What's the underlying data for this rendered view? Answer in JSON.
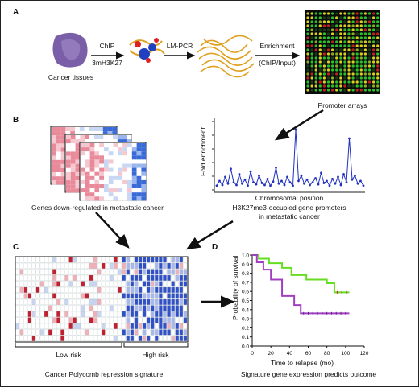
{
  "panels": {
    "a": "A",
    "b": "B",
    "c": "C",
    "d": "D"
  },
  "panel_a": {
    "chip_top": "ChIP",
    "chip_bottom": "3mH3K27",
    "lmpcr": "LM-PCR",
    "enrich_top": "Enrichment",
    "enrich_bottom": "(ChIP/Input)",
    "tissue_label": "Cancer tissues",
    "array_label": "Promoter arrays"
  },
  "panel_b": {
    "heatmap_label": "Genes down-regulated in metastatic cancer",
    "ylabel": "Fold enrichment",
    "xlabel": "Chromosomal position",
    "caption_line1": "H3K27me3-occupied gene promoters",
    "caption_line2": "in metastatic cancer"
  },
  "panel_c": {
    "low": "Low risk",
    "high": "High risk",
    "caption": "Cancer Polycomb repression signature"
  },
  "chart_data": {
    "type": "line",
    "title": "",
    "xlabel": "Time to relapse (mo)",
    "ylabel": "Probability of survival",
    "xlim": [
      0,
      120
    ],
    "ylim": [
      0,
      1.0
    ],
    "xticks": [
      0,
      20,
      40,
      60,
      80,
      100,
      120
    ],
    "yticks": [
      0.0,
      0.1,
      0.2,
      0.3,
      0.4,
      0.5,
      0.6,
      0.7,
      0.8,
      0.9,
      1.0
    ],
    "series": [
      {
        "color": "#66dd22",
        "x": [
          0,
          7,
          7,
          18,
          18,
          32,
          32,
          42,
          42,
          58,
          58,
          80,
          80,
          88,
          88,
          104
        ],
        "y": [
          1.0,
          1.0,
          0.96,
          0.96,
          0.91,
          0.91,
          0.86,
          0.86,
          0.78,
          0.78,
          0.73,
          0.73,
          0.69,
          0.69,
          0.59,
          0.59
        ]
      },
      {
        "color": "#a040c0",
        "x": [
          0,
          5,
          5,
          12,
          12,
          20,
          20,
          32,
          32,
          45,
          45,
          52,
          52,
          104
        ],
        "y": [
          1.0,
          1.0,
          0.92,
          0.92,
          0.84,
          0.84,
          0.73,
          0.73,
          0.55,
          0.55,
          0.45,
          0.45,
          0.36,
          0.36
        ]
      }
    ],
    "caption": "Signature gene expression predicts outcome"
  },
  "enrichment_profile": {
    "type": "line",
    "values": [
      0.05,
      0.12,
      0.06,
      0.18,
      0.08,
      0.3,
      0.1,
      0.06,
      0.22,
      0.08,
      0.14,
      0.05,
      0.26,
      0.1,
      0.07,
      0.2,
      0.09,
      0.06,
      0.15,
      0.05,
      0.11,
      0.32,
      0.08,
      0.12,
      0.06,
      0.18,
      0.1,
      0.05,
      0.88,
      0.12,
      0.2,
      0.08,
      0.14,
      0.06,
      0.1,
      0.16,
      0.07,
      0.24,
      0.09,
      0.12,
      0.05,
      0.15,
      0.08,
      0.18,
      0.06,
      0.22,
      0.1,
      0.75,
      0.14,
      0.2,
      0.08,
      0.12,
      0.05
    ]
  }
}
